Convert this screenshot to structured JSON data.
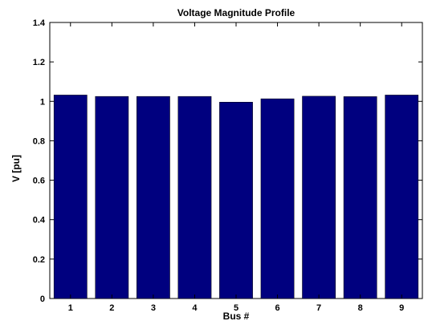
{
  "chart_data": {
    "type": "bar",
    "title": "Voltage Magnitude Profile",
    "xlabel": "Bus #",
    "ylabel": "V [pu]",
    "categories": [
      "1",
      "2",
      "3",
      "4",
      "5",
      "6",
      "7",
      "8",
      "9"
    ],
    "values": [
      1.032,
      1.025,
      1.025,
      1.025,
      0.996,
      1.013,
      1.026,
      1.024,
      1.032
    ],
    "ylim": [
      0,
      1.4
    ],
    "yticks": [
      0,
      0.2,
      0.4,
      0.6,
      0.8,
      1,
      1.2,
      1.4
    ],
    "ytick_labels": [
      "0",
      "0.2",
      "0.4",
      "0.6",
      "0.8",
      "1",
      "1.2",
      "1.4"
    ],
    "grid": false,
    "bar_color": "#00007f"
  }
}
